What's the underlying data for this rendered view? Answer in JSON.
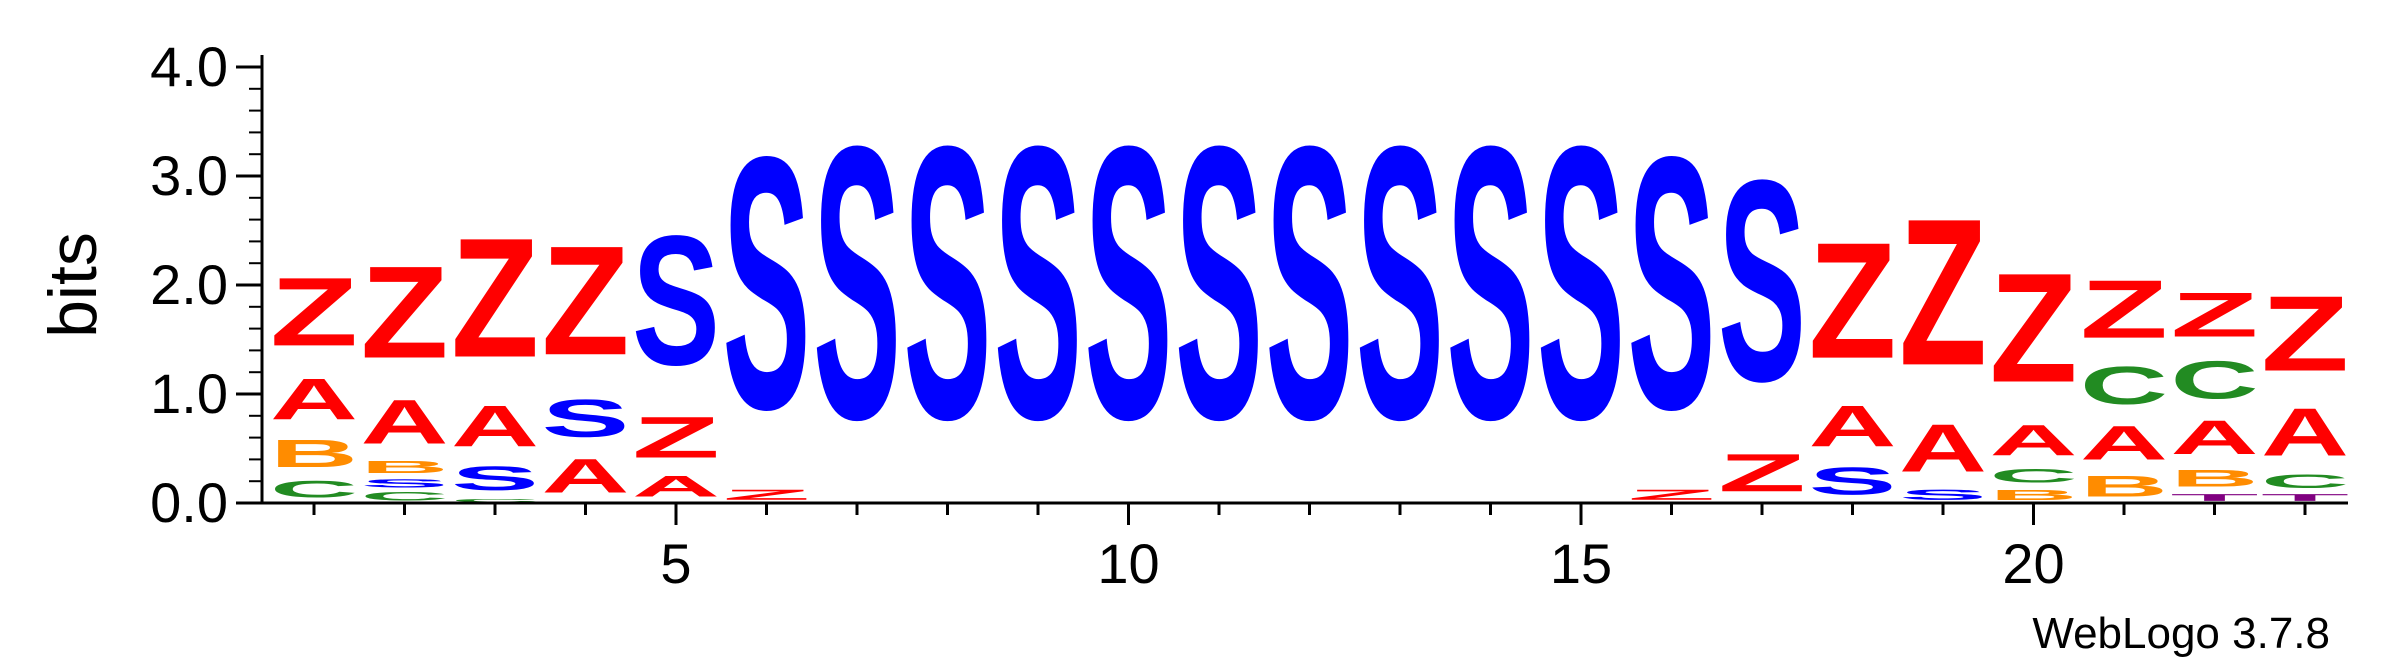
{
  "chart_data": {
    "type": "sequence-logo",
    "ylabel": "bits",
    "ylim": [
      0,
      4.0
    ],
    "yticks": [
      "0.0",
      "1.0",
      "2.0",
      "3.0",
      "4.0"
    ],
    "xticks": [
      "5",
      "10",
      "15",
      "20"
    ],
    "credit": "WebLogo 3.7.8",
    "colors": {
      "Z": "#ff0000",
      "S": "#0000ff",
      "A": "#ff0000",
      "B": "#ff8c00",
      "C": "#228b22",
      "T": "#800080"
    },
    "positions": [
      {
        "pos": 1,
        "stack": [
          [
            "C",
            0.25
          ],
          [
            "B",
            0.4
          ],
          [
            "A",
            0.6
          ],
          [
            "Z",
            1.0
          ]
        ]
      },
      {
        "pos": 2,
        "stack": [
          [
            "C",
            0.12
          ],
          [
            "S",
            0.12
          ],
          [
            "B",
            0.18
          ],
          [
            "A",
            0.65
          ],
          [
            "Z",
            1.35
          ]
        ]
      },
      {
        "pos": 3,
        "stack": [
          [
            "C",
            0.05
          ],
          [
            "S",
            0.35
          ],
          [
            "A",
            0.6
          ],
          [
            "Z",
            1.75
          ]
        ]
      },
      {
        "pos": 4,
        "stack": [
          [
            "A",
            0.5
          ],
          [
            "S",
            0.55
          ],
          [
            "Z",
            1.6
          ]
        ]
      },
      {
        "pos": 5,
        "stack": [
          [
            "A",
            0.3
          ],
          [
            "Z",
            0.6
          ],
          [
            "S",
            1.9
          ]
        ]
      },
      {
        "pos": 6,
        "stack": [
          [
            "Z",
            0.15
          ],
          [
            "S",
            3.7
          ]
        ]
      },
      {
        "pos": 7,
        "stack": [
          [
            "S",
            4.0
          ]
        ]
      },
      {
        "pos": 8,
        "stack": [
          [
            "S",
            4.0
          ]
        ]
      },
      {
        "pos": 9,
        "stack": [
          [
            "S",
            4.0
          ]
        ]
      },
      {
        "pos": 10,
        "stack": [
          [
            "S",
            4.0
          ]
        ]
      },
      {
        "pos": 11,
        "stack": [
          [
            "S",
            4.0
          ]
        ]
      },
      {
        "pos": 12,
        "stack": [
          [
            "S",
            4.0
          ]
        ]
      },
      {
        "pos": 13,
        "stack": [
          [
            "S",
            4.0
          ]
        ]
      },
      {
        "pos": 14,
        "stack": [
          [
            "S",
            4.0
          ]
        ]
      },
      {
        "pos": 15,
        "stack": [
          [
            "S",
            4.0
          ]
        ]
      },
      {
        "pos": 16,
        "stack": [
          [
            "Z",
            0.15
          ],
          [
            "S",
            3.7
          ]
        ]
      },
      {
        "pos": 17,
        "stack": [
          [
            "Z",
            0.55
          ],
          [
            "S",
            2.95
          ]
        ]
      },
      {
        "pos": 18,
        "stack": [
          [
            "S",
            0.4
          ],
          [
            "A",
            0.6
          ],
          [
            "Z",
            1.7
          ]
        ]
      },
      {
        "pos": 19,
        "stack": [
          [
            "S",
            0.15
          ],
          [
            "A",
            0.7
          ],
          [
            "Z",
            2.15
          ]
        ]
      },
      {
        "pos": 20,
        "stack": [
          [
            "B",
            0.15
          ],
          [
            "C",
            0.2
          ],
          [
            "A",
            0.45
          ],
          [
            "Z",
            1.6
          ]
        ]
      },
      {
        "pos": 21,
        "stack": [
          [
            "B",
            0.3
          ],
          [
            "A",
            0.5
          ],
          [
            "C",
            0.55
          ],
          [
            "Z",
            0.85
          ]
        ]
      },
      {
        "pos": 22,
        "stack": [
          [
            "T",
            0.1
          ],
          [
            "B",
            0.25
          ],
          [
            "A",
            0.5
          ],
          [
            "C",
            0.55
          ],
          [
            "Z",
            0.65
          ]
        ]
      },
      {
        "pos": 23,
        "stack": [
          [
            "T",
            0.1
          ],
          [
            "C",
            0.2
          ],
          [
            "A",
            0.7
          ],
          [
            "Z",
            1.1
          ]
        ]
      }
    ]
  }
}
